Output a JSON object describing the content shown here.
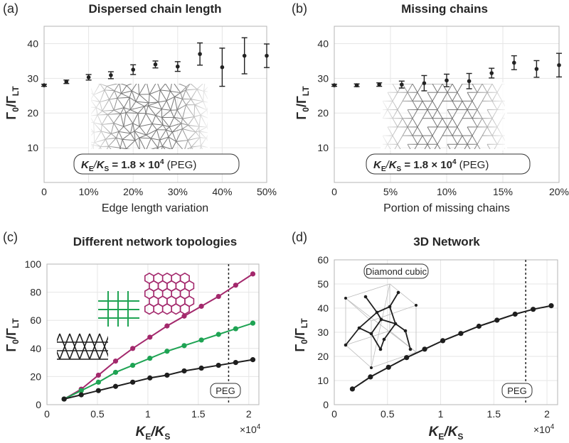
{
  "chart_data": [
    {
      "panel_label": "(a)",
      "type": "scatter",
      "title": "Dispersed chain length",
      "xlabel": "Edge length variation",
      "ylabel": "Γ0/ΓLT",
      "xlim": [
        0,
        50
      ],
      "ylim": [
        0,
        45
      ],
      "xticks": [
        0,
        10,
        20,
        30,
        40,
        50
      ],
      "xtick_labels": [
        "0",
        "10%",
        "20%",
        "30%",
        "40%",
        "50%"
      ],
      "yticks": [
        10,
        20,
        30,
        40
      ],
      "grid": true,
      "annotation": "KE/KS = 1.8 × 10^4 (PEG)",
      "series": [
        {
          "x": [
            0,
            5,
            10,
            15,
            20,
            25,
            30,
            35,
            40,
            45,
            50
          ],
          "y": [
            28,
            29,
            30.3,
            30.9,
            32.5,
            34,
            33.4,
            37,
            33.2,
            36.5,
            36.5
          ],
          "err": [
            0.3,
            0.5,
            0.8,
            1.0,
            1.4,
            1.0,
            1.4,
            3.2,
            5.5,
            5.2,
            3.4
          ]
        }
      ]
    },
    {
      "panel_label": "(b)",
      "type": "scatter",
      "title": "Missing chains",
      "xlabel": "Portion of missing chains",
      "ylabel": "Γ0/ΓLT",
      "xlim": [
        0,
        20
      ],
      "ylim": [
        0,
        45
      ],
      "xticks": [
        0,
        5,
        10,
        15,
        20
      ],
      "xtick_labels": [
        "0",
        "5%",
        "10%",
        "15%",
        "20%"
      ],
      "yticks": [
        10,
        20,
        30,
        40
      ],
      "grid": true,
      "annotation": "KE/KS = 1.8 × 10^4 (PEG)",
      "series": [
        {
          "x": [
            0,
            2,
            4,
            6,
            8,
            10,
            12,
            14,
            16,
            18,
            20
          ],
          "y": [
            28,
            28,
            28.2,
            28.2,
            28.6,
            29.4,
            29.2,
            31.5,
            34.5,
            32.7,
            33.8
          ],
          "err": [
            0.3,
            0.4,
            0.5,
            1.0,
            2.2,
            1.8,
            2.2,
            1.4,
            2.0,
            2.4,
            3.4
          ]
        }
      ]
    },
    {
      "panel_label": "(c)",
      "type": "line",
      "title": "Different network topologies",
      "xlabel": "KE/KS",
      "ylabel": "Γ0/ΓLT",
      "x_multiplier": "×10^4",
      "xlim": [
        0,
        2.1
      ],
      "ylim": [
        0,
        100
      ],
      "xticks": [
        0,
        0.5,
        1,
        1.5,
        2
      ],
      "xtick_labels": [
        "0",
        "0.5",
        "1",
        "1.5",
        "2"
      ],
      "yticks": [
        0,
        20,
        40,
        60,
        80,
        100
      ],
      "grid": true,
      "vline": {
        "x": 1.8,
        "label": "PEG"
      },
      "x": [
        0.17,
        0.34,
        0.51,
        0.68,
        0.85,
        1.02,
        1.19,
        1.36,
        1.53,
        1.7,
        1.87,
        2.04
      ],
      "series": [
        {
          "topology": "hexagonal",
          "color": "#a3286c",
          "values": [
            4,
            11,
            21,
            31,
            40,
            48,
            56,
            63,
            70,
            77,
            85,
            93
          ]
        },
        {
          "topology": "square",
          "color": "#1ea353",
          "values": [
            4,
            10,
            16,
            23,
            28,
            33,
            38,
            42,
            46,
            50,
            54,
            58
          ]
        },
        {
          "topology": "triangular",
          "color": "#1e1e1e",
          "values": [
            4,
            7,
            10,
            13,
            16,
            19,
            21,
            24,
            26,
            28,
            30,
            32
          ]
        }
      ]
    },
    {
      "panel_label": "(d)",
      "type": "line",
      "title": "3D Network",
      "xlabel": "KE/KS",
      "ylabel": "Γ0/ΓLT",
      "x_multiplier": "×10^4",
      "xlim": [
        0,
        2.1
      ],
      "ylim": [
        0,
        60
      ],
      "xticks": [
        0,
        0.5,
        1,
        1.5,
        2
      ],
      "xtick_labels": [
        "0",
        "0.5",
        "1",
        "1.5",
        "2"
      ],
      "yticks": [
        0,
        10,
        20,
        30,
        40,
        50,
        60
      ],
      "grid": true,
      "vline": {
        "x": 1.8,
        "label": "PEG"
      },
      "inset_label": "Diamond cubic",
      "x": [
        0.17,
        0.34,
        0.51,
        0.68,
        0.85,
        1.02,
        1.19,
        1.36,
        1.53,
        1.7,
        1.87,
        2.04
      ],
      "series": [
        {
          "color": "#1e1e1e",
          "values": [
            6.5,
            11.5,
            15.5,
            19.5,
            23,
            26.5,
            29.5,
            32.5,
            35,
            37.5,
            39.5,
            41
          ]
        }
      ]
    }
  ]
}
